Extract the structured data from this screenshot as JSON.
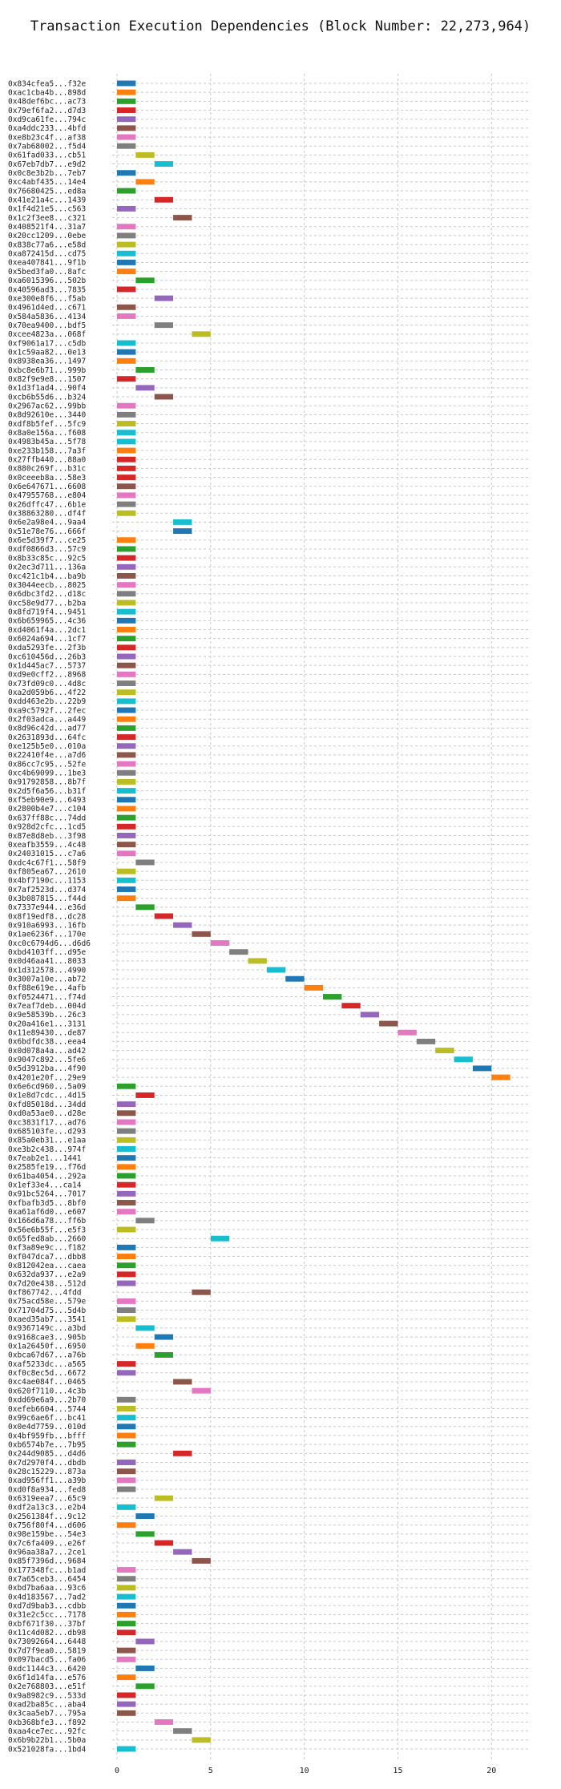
{
  "chart_data": {
    "type": "bar",
    "orientation": "horizontal",
    "title": "Transaction Execution Dependencies (Block Number: 22,273,964)",
    "xlabel": "",
    "ylabel": "",
    "xlim": [
      0,
      22
    ],
    "xticks": [
      0,
      5,
      10,
      15,
      20
    ],
    "grid": true,
    "bar_width": 1,
    "palette": [
      "#1f77b4",
      "#ff7f0e",
      "#2ca02c",
      "#d62728",
      "#9467bd",
      "#8c564b",
      "#e377c2",
      "#7f7f7f",
      "#bcbd22",
      "#17becf"
    ],
    "categories": [
      "0x834cfea5...f32e",
      "0xac1cba4b...898d",
      "0x48def6bc...ac73",
      "0x79ef6fa2...d7d3",
      "0xd9ca61fe...794c",
      "0xa4ddc233...4bfd",
      "0xe8b23c4f...af38",
      "0x7ab68002...f5d4",
      "0x61fad033...cb51",
      "0x67eb7db7...e9d2",
      "0x0c8e3b2b...7eb7",
      "0xc4abf435...14e4",
      "0x76680425...ed8a",
      "0x41e21a4c...1439",
      "0x1f4d21e5...c563",
      "0x1c2f3ee8...c321",
      "0x408521f4...31a7",
      "0x20cc1209...0ebe",
      "0x838c77a6...e58d",
      "0xa872415d...cd75",
      "0xea407841...9f1b",
      "0x5bed3fa0...8afc",
      "0xa6015396...502b",
      "0x40596ad3...7835",
      "0xe300e8f6...f5ab",
      "0x4961d4ed...c671",
      "0x584a5836...4134",
      "0x70ea9400...bdf5",
      "0xcee4823a...068f",
      "0xf9061a17...c5db",
      "0x1c59aa82...0e13",
      "0x8938ea36...1497",
      "0xbc8e6b71...999b",
      "0x82f9e9e8...1507",
      "0x1d3f1ad4...90f4",
      "0xcb6b55d6...b324",
      "0x2967ac62...99bb",
      "0x8d92610e...3440",
      "0xdf8b5fef...5fc9",
      "0x8a0e156a...f608",
      "0x4983b45a...5f78",
      "0xe233b158...7a3f",
      "0x27ffb440...88a0",
      "0x880c269f...b31c",
      "0x0ceeeb8a...58e3",
      "0x6e647671...6608",
      "0x47955768...e804",
      "0x26dffc47...6b1e",
      "0x38863280...df4f",
      "0x6e2a98e4...9aa4",
      "0x51e78e76...666f",
      "0x6e5d39f7...ce25",
      "0xdf0866d3...57c9",
      "0x8b33c85c...92c5",
      "0x2ec3d711...136a",
      "0xc421c1b4...ba9b",
      "0x3044eecb...8025",
      "0x6dbc3fd2...d18c",
      "0xc58e9d77...b2ba",
      "0x8fd719f4...9451",
      "0x6b659965...4c36",
      "0xd4061f4a...2dc1",
      "0x6024a694...1cf7",
      "0xda5293fe...2f3b",
      "0xc610456d...26b3",
      "0x1d445ac7...5737",
      "0xd9e0cff2...8968",
      "0x73fd09c0...4d8c",
      "0xa2d059b6...4f22",
      "0xdd463e2b...22b9",
      "0xa9c5792f...2fec",
      "0x2f03adca...a449",
      "0x8d96c42d...ad77",
      "0x2631893d...64fc",
      "0xe125b5e0...010a",
      "0x22410f4e...a7d6",
      "0x86cc7c95...52fe",
      "0xc4b69099...1be3",
      "0x91792858...8b7f",
      "0x2d5f6a56...b31f",
      "0xf5eb90e9...6493",
      "0x2800b4e7...c104",
      "0x637ff88c...74dd",
      "0x928d2cfc...1cd5",
      "0x87e8d8eb...3f98",
      "0xeafb3559...4c48",
      "0x24031015...c7a6",
      "0xdc4c67f1...58f9",
      "0xf805ea67...2610",
      "0x4bf7190c...1153",
      "0x7af2523d...d374",
      "0x3b087815...f44d",
      "0x7337e944...e36d",
      "0x8f19edf8...dc28",
      "0x910a6993...16fb",
      "0x1ae6236f...170e",
      "0xc0c6794d6...d6d6",
      "0xbd4103ff...d95e",
      "0x0d46aa41...8033",
      "0x1d312578...4990",
      "0x3007a10e...ab72",
      "0xf88e619e...4afb",
      "0xf0524471...f74d",
      "0x7eaf7deb...004d",
      "0x9e58539b...26c3",
      "0x20a416e1...3131",
      "0x11e89430...de87",
      "0x6bdfdc38...eea4",
      "0x0d078a4a...ad42",
      "0x9047c892...5fe6",
      "0x5d3912ba...4f90",
      "0x4201e20f...29e9",
      "0x6e6cd960...5a09",
      "0x1e8d7cdc...4d15",
      "0xfd85018d...34dd",
      "0xd0a53ae0...d28e",
      "0xc3831f17...ad76",
      "0x685103fe...d293",
      "0x85a0eb31...e1aa",
      "0xe3b2c438...974f",
      "0x7eab2e1...1441",
      "0x2585fe19...f76d",
      "0x61ba4054...292a",
      "0x1ef33e4...ca14",
      "0x91bc5264...7017",
      "0xfbafb3d5...8bf0",
      "0xa61af6d0...e607",
      "0x166d6a78...ff6b",
      "0x56e6b55f...e5f3",
      "0x65fed8ab...2660",
      "0xf3a89e9c...f182",
      "0xf047dca7...dbb8",
      "0x812042ea...caea",
      "0x632da937...e2a9",
      "0x7d20e438...512d",
      "0xf867742...4fdd",
      "0x75acd58e...579e",
      "0x71704d75...5d4b",
      "0xaed35ab7...3541",
      "0x9367149c...a3bd",
      "0x9168cae3...905b",
      "0x1a26450f...6950",
      "0xbca67d67...a76b",
      "0xaf5233dc...a565",
      "0xf0c8ec5d...6672",
      "0xc4ae084f...0465",
      "0x620f7110...4c3b",
      "0xdd69e6a9...2b70",
      "0xefeb6604...5744",
      "0x99c6ae6f...bc41",
      "0x0e4d7759...010d",
      "0x4bf959fb...bfff",
      "0xb6574b7e...7b95",
      "0x244d9085...d4d6",
      "0x7d2970f4...dbdb",
      "0x28c15229...873a",
      "0xad956ff1...a39b",
      "0xd0f8a934...fed8",
      "0x6319eea7...65c9",
      "0xdf2a13c3...e2b4",
      "0x2561384f...9c12",
      "0x756f80f4...d606",
      "0x98e159be...54e3",
      "0x7c6fa409...e26f",
      "0x96aa38a7...2ce1",
      "0x85f7396d...9684",
      "0x177348fc...b1ad",
      "0x7a65ceb3...6454",
      "0xbd7ba6aa...93c6",
      "0x4d183567...7ad2",
      "0xd7d9bab3...cdbb",
      "0x31e2c5cc...7178",
      "0xbf671f30...37bf",
      "0x11c4d082...db98",
      "0x73092664...6448",
      "0x7d7f9ea0...5819",
      "0x097bacd5...fa06",
      "0xdc1144c3...6420",
      "0x6f1d14fa...e576",
      "0x2e768803...e51f",
      "0x9a8982c9...533d",
      "0xad2ba85c...aba4",
      "0x3caa5eb7...795a",
      "0xb368bfe3...f892",
      "0xaa4ce7ec...92fc",
      "0x6b9b22b1...5b0a",
      "0x521028fa...1bd4"
    ],
    "starts": [
      0,
      0,
      0,
      0,
      0,
      0,
      0,
      0,
      1,
      2,
      0,
      1,
      0,
      2,
      0,
      3,
      0,
      0,
      0,
      0,
      0,
      0,
      1,
      0,
      2,
      0,
      0,
      2,
      4,
      0,
      0,
      0,
      1,
      0,
      1,
      2,
      0,
      0,
      0,
      0,
      0,
      0,
      0,
      0,
      0,
      0,
      0,
      0,
      0,
      3,
      3,
      0,
      0,
      0,
      0,
      0,
      0,
      0,
      0,
      0,
      0,
      0,
      0,
      0,
      0,
      0,
      0,
      0,
      0,
      0,
      0,
      0,
      0,
      0,
      0,
      0,
      0,
      0,
      0,
      0,
      0,
      0,
      0,
      0,
      0,
      0,
      0,
      1,
      0,
      0,
      0,
      0,
      1,
      2,
      3,
      4,
      5,
      6,
      7,
      8,
      9,
      10,
      11,
      12,
      13,
      14,
      15,
      16,
      17,
      18,
      19,
      20,
      0,
      1,
      0,
      0,
      0,
      0,
      0,
      0,
      0,
      0,
      0,
      0,
      0,
      0,
      0,
      1,
      0,
      5,
      0,
      0,
      0,
      0,
      0,
      4,
      0,
      0,
      0,
      1,
      2,
      1,
      2,
      0,
      0,
      3,
      4,
      0,
      0,
      0,
      0,
      0,
      0,
      3,
      0,
      0,
      0,
      0,
      2,
      0,
      1,
      0,
      1,
      2,
      3,
      4,
      0,
      0,
      0,
      0,
      0,
      0,
      0,
      0,
      1,
      0,
      0,
      1,
      0,
      1,
      0,
      0,
      0,
      2,
      3,
      4,
      0
    ],
    "colors": [
      "#1f77b4",
      "#ff7f0e",
      "#2ca02c",
      "#d62728",
      "#9467bd",
      "#8c564b",
      "#e377c2",
      "#7f7f7f",
      "#bcbd22",
      "#17becf",
      "#1f77b4",
      "#ff7f0e",
      "#2ca02c",
      "#d62728",
      "#9467bd",
      "#8c564b",
      "#e377c2",
      "#7f7f7f",
      "#bcbd22",
      "#17becf",
      "#1f77b4",
      "#ff7f0e",
      "#2ca02c",
      "#d62728",
      "#9467bd",
      "#8c564b",
      "#e377c2",
      "#7f7f7f",
      "#bcbd22",
      "#17becf",
      "#1f77b4",
      "#ff7f0e",
      "#2ca02c",
      "#d62728",
      "#9467bd",
      "#8c564b",
      "#e377c2",
      "#7f7f7f",
      "#bcbd22",
      "#17becf",
      "#17becf",
      "#ff7f0e",
      "#d62728",
      "#d62728",
      "#d62728",
      "#8c564b",
      "#e377c2",
      "#7f7f7f",
      "#bcbd22",
      "#17becf",
      "#1f77b4",
      "#ff7f0e",
      "#2ca02c",
      "#d62728",
      "#9467bd",
      "#8c564b",
      "#e377c2",
      "#7f7f7f",
      "#bcbd22",
      "#17becf",
      "#1f77b4",
      "#ff7f0e",
      "#2ca02c",
      "#d62728",
      "#9467bd",
      "#8c564b",
      "#e377c2",
      "#7f7f7f",
      "#bcbd22",
      "#17becf",
      "#1f77b4",
      "#ff7f0e",
      "#2ca02c",
      "#d62728",
      "#9467bd",
      "#8c564b",
      "#e377c2",
      "#7f7f7f",
      "#bcbd22",
      "#17becf",
      "#1f77b4",
      "#ff7f0e",
      "#2ca02c",
      "#d62728",
      "#9467bd",
      "#8c564b",
      "#e377c2",
      "#7f7f7f",
      "#bcbd22",
      "#17becf",
      "#1f77b4",
      "#ff7f0e",
      "#2ca02c",
      "#d62728",
      "#9467bd",
      "#8c564b",
      "#e377c2",
      "#7f7f7f",
      "#bcbd22",
      "#17becf",
      "#1f77b4",
      "#ff7f0e",
      "#2ca02c",
      "#d62728",
      "#9467bd",
      "#8c564b",
      "#e377c2",
      "#7f7f7f",
      "#bcbd22",
      "#17becf",
      "#1f77b4",
      "#ff7f0e",
      "#2ca02c",
      "#d62728",
      "#9467bd",
      "#8c564b",
      "#e377c2",
      "#7f7f7f",
      "#bcbd22",
      "#17becf",
      "#1f77b4",
      "#ff7f0e",
      "#2ca02c",
      "#d62728",
      "#9467bd",
      "#8c564b",
      "#e377c2",
      "#7f7f7f",
      "#bcbd22",
      "#17becf",
      "#1f77b4",
      "#ff7f0e",
      "#2ca02c",
      "#d62728",
      "#9467bd",
      "#8c564b",
      "#e377c2",
      "#7f7f7f",
      "#bcbd22",
      "#17becf",
      "#1f77b4",
      "#ff7f0e",
      "#2ca02c",
      "#d62728",
      "#9467bd",
      "#8c564b",
      "#e377c2",
      "#7f7f7f",
      "#bcbd22",
      "#17becf",
      "#1f77b4",
      "#ff7f0e",
      "#2ca02c",
      "#d62728",
      "#9467bd",
      "#8c564b",
      "#e377c2",
      "#7f7f7f",
      "#bcbd22",
      "#17becf",
      "#1f77b4",
      "#ff7f0e",
      "#2ca02c",
      "#d62728",
      "#9467bd",
      "#8c564b",
      "#e377c2",
      "#7f7f7f",
      "#bcbd22",
      "#17becf",
      "#1f77b4",
      "#ff7f0e",
      "#2ca02c",
      "#d62728",
      "#9467bd",
      "#8c564b",
      "#e377c2"
    ]
  }
}
